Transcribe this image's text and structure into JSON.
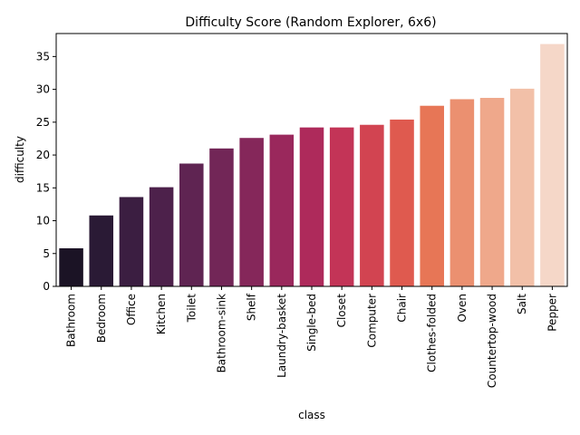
{
  "chart_data": {
    "type": "bar",
    "title": "Difficulty Score (Random Explorer, 6x6)",
    "xlabel": "class",
    "ylabel": "difficulty",
    "ylim": [
      0,
      38.5
    ],
    "yticks": [
      0,
      5,
      10,
      15,
      20,
      25,
      30,
      35
    ],
    "grid": false,
    "categories": [
      "Bathroom",
      "Bedroom",
      "Office",
      "Kitchen",
      "Toilet",
      "Bathroom-sink",
      "Shelf",
      "Laundry-basket",
      "Single-bed",
      "Closet",
      "Computer",
      "Chair",
      "Clothes-folded",
      "Oven",
      "Countertop-wood",
      "Salt",
      "Pepper"
    ],
    "values": [
      5.8,
      10.8,
      13.6,
      15.1,
      18.7,
      21.0,
      22.6,
      23.1,
      24.2,
      24.2,
      24.6,
      25.4,
      27.5,
      28.5,
      28.7,
      30.1,
      36.9
    ],
    "colors": [
      "#1b1325",
      "#2a1a35",
      "#3b1e41",
      "#4d214b",
      "#5f2452",
      "#722657",
      "#85275a",
      "#9a285c",
      "#ae2a5b",
      "#c33457",
      "#d24451",
      "#df5a4f",
      "#e77656",
      "#eb9070",
      "#efa88b",
      "#f2c0a8",
      "#f5d7c8"
    ]
  }
}
